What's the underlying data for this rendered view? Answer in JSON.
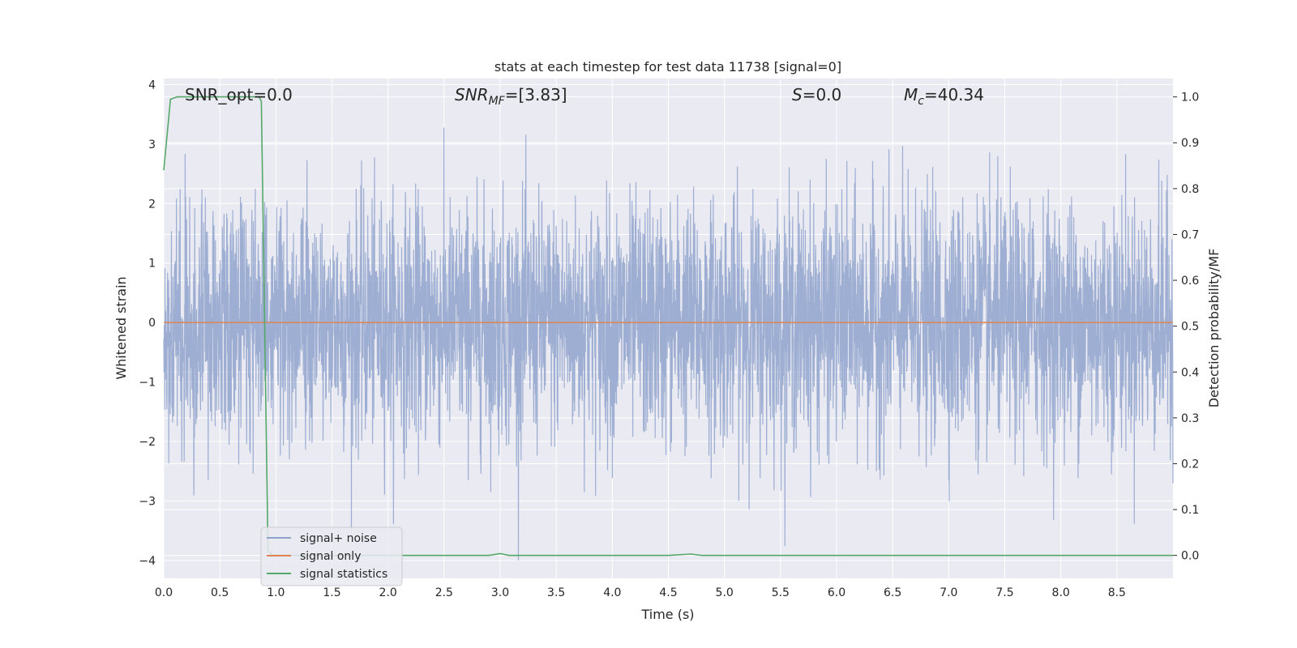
{
  "chart_data": {
    "type": "line",
    "title": "stats at each timestep for test data 11738 [signal=0]",
    "xlabel": "Time (s)",
    "ylabel_left": "Whitened strain",
    "ylabel_right": "Detection probability/MF",
    "xlim": [
      0.0,
      9.0
    ],
    "ylim_left": [
      -4.3,
      4.1
    ],
    "ylim_right": [
      -0.05,
      1.04
    ],
    "x_ticks": [
      "0.0",
      "0.5",
      "1.0",
      "1.5",
      "2.0",
      "2.5",
      "3.0",
      "3.5",
      "4.0",
      "4.5",
      "5.0",
      "5.5",
      "6.0",
      "6.5",
      "7.0",
      "7.5",
      "8.0",
      "8.5"
    ],
    "y_left_ticks": [
      "4",
      "3",
      "2",
      "1",
      "0",
      "−1",
      "−2",
      "−3",
      "−4"
    ],
    "y_right_ticks": [
      "1.0",
      "0.9",
      "0.8",
      "0.7",
      "0.6",
      "0.5",
      "0.4",
      "0.3",
      "0.2",
      "0.1",
      "0.0"
    ],
    "grid": true,
    "legend_position": "lower-left",
    "annotations": {
      "snr_opt": "SNR_opt=0.0",
      "snr_mf_main": "SNR",
      "snr_mf_sub": "MF",
      "snr_mf_value": "=[3.83]",
      "s_symbol": "S",
      "s_value": "=0.0",
      "mc_symbol": "M",
      "mc_sub": "c",
      "mc_value": "=40.34"
    },
    "series": [
      {
        "name": "signal+ noise",
        "axis": "left",
        "color": "#8fa3cd",
        "description_envelope": "dense noise, roughly within [-2.5, 3.0] with spikes to 3.7 and -4.0",
        "x": [
          0.0,
          9.0
        ],
        "y_range": [
          -4.0,
          3.7
        ]
      },
      {
        "name": "signal only",
        "axis": "left",
        "color": "#dd8452",
        "x": [
          0.0,
          9.0
        ],
        "y": [
          0.0,
          0.0
        ]
      },
      {
        "name": "signal statistics",
        "axis": "right",
        "color": "#55a868",
        "x": [
          0.0,
          0.06,
          0.12,
          0.5,
          0.85,
          0.87,
          0.9,
          0.93,
          0.97,
          1.5,
          2.9,
          3.0,
          3.08,
          4.5,
          4.7,
          4.8,
          9.0
        ],
        "y": [
          0.84,
          0.995,
          1.0,
          1.0,
          1.0,
          0.99,
          0.5,
          0.01,
          0.0,
          0.0,
          0.0,
          0.004,
          0.0,
          0.0,
          0.003,
          0.0,
          0.0
        ]
      }
    ]
  },
  "colors": {
    "plot_background": "#eaeaf2",
    "grid": "#ffffff",
    "noise": "#8fa3cd",
    "signal": "#dd8452",
    "stats": "#55a868"
  }
}
